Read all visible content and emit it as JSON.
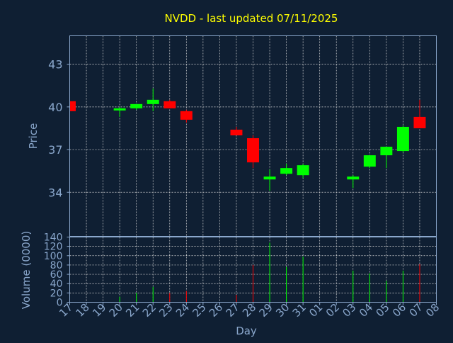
{
  "colors": {
    "background": "#0f1f33",
    "axis": "#8aa7cc",
    "title": "#ffff00",
    "label": "#8aa7cc",
    "up": "#00ff00",
    "down": "#ff0000",
    "grid": "#dddddd"
  },
  "chart_data": {
    "type": "candlestick",
    "title": "NVDD - last updated 07/11/2025",
    "xlabel": "Day",
    "ylabel": "Price",
    "volume_label": "Volume (0000)",
    "x_ticks": [
      "17",
      "18",
      "19",
      "20",
      "21",
      "22",
      "23",
      "24",
      "25",
      "26",
      "27",
      "28",
      "29",
      "30",
      "31",
      "01",
      "02",
      "03",
      "04",
      "05",
      "06",
      "07",
      "08"
    ],
    "price_ticks": [
      34,
      37,
      40,
      43
    ],
    "price_range": [
      30.9,
      45.0
    ],
    "volume_ticks": [
      0,
      20,
      40,
      60,
      80,
      100,
      120,
      140
    ],
    "volume_range": [
      0,
      140
    ],
    "grid": true,
    "candles": [
      {
        "day": "17",
        "open": 40.4,
        "high": 40.5,
        "low": 39.7,
        "close": 39.7,
        "volume": 2
      },
      {
        "day": "20",
        "open": 39.8,
        "high": 40.0,
        "low": 39.3,
        "close": 39.9,
        "volume": 12
      },
      {
        "day": "21",
        "open": 39.9,
        "high": 40.2,
        "low": 39.8,
        "close": 40.2,
        "volume": 20
      },
      {
        "day": "22",
        "open": 40.2,
        "high": 41.3,
        "low": 39.7,
        "close": 40.5,
        "volume": 33
      },
      {
        "day": "23",
        "open": 40.4,
        "high": 40.5,
        "low": 39.9,
        "close": 39.9,
        "volume": 20
      },
      {
        "day": "24",
        "open": 39.7,
        "high": 39.8,
        "low": 38.9,
        "close": 39.1,
        "volume": 24
      },
      {
        "day": "27",
        "open": 38.4,
        "high": 38.6,
        "low": 38.0,
        "close": 38.0,
        "volume": 16
      },
      {
        "day": "28",
        "open": 37.8,
        "high": 38.0,
        "low": 35.7,
        "close": 36.1,
        "volume": 80
      },
      {
        "day": "29",
        "open": 34.9,
        "high": 35.6,
        "low": 34.1,
        "close": 35.1,
        "volume": 128
      },
      {
        "day": "30",
        "open": 35.3,
        "high": 36.0,
        "low": 35.2,
        "close": 35.7,
        "volume": 76
      },
      {
        "day": "31",
        "open": 35.2,
        "high": 36.0,
        "low": 35.0,
        "close": 35.9,
        "volume": 98
      },
      {
        "day": "03",
        "open": 34.9,
        "high": 35.2,
        "low": 34.3,
        "close": 35.1,
        "volume": 68
      },
      {
        "day": "04",
        "open": 35.8,
        "high": 36.6,
        "low": 35.7,
        "close": 36.6,
        "volume": 62
      },
      {
        "day": "05",
        "open": 36.6,
        "high": 37.2,
        "low": 35.7,
        "close": 37.2,
        "volume": 46
      },
      {
        "day": "06",
        "open": 36.9,
        "high": 38.7,
        "low": 36.8,
        "close": 38.6,
        "volume": 68
      },
      {
        "day": "07",
        "open": 39.3,
        "high": 40.5,
        "low": 38.5,
        "close": 38.5,
        "volume": 82
      }
    ]
  }
}
